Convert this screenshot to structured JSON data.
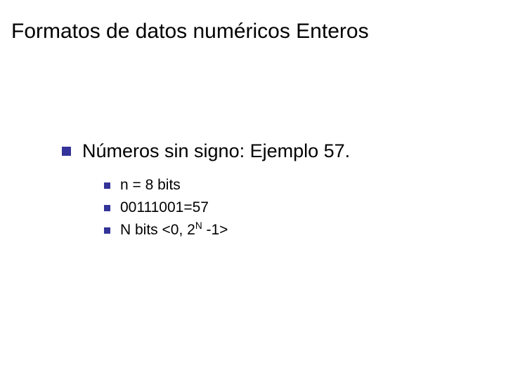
{
  "slide": {
    "title": "Formatos de datos numéricos Enteros",
    "title_fontsize": 30,
    "title_color": "#000000",
    "background_color": "#ffffff",
    "bullet_color": "#333399",
    "level1": {
      "bullet_size": 13,
      "text": "Números sin signo: Ejemplo 57.",
      "fontsize": 27
    },
    "level2": {
      "bullet_size": 9,
      "fontsize": 21,
      "items": [
        {
          "text": "n = 8 bits"
        },
        {
          "text": "00111001=57"
        },
        {
          "text_prefix": "N bits <0, 2",
          "sup": "N",
          "text_suffix": " -1>"
        }
      ]
    }
  }
}
